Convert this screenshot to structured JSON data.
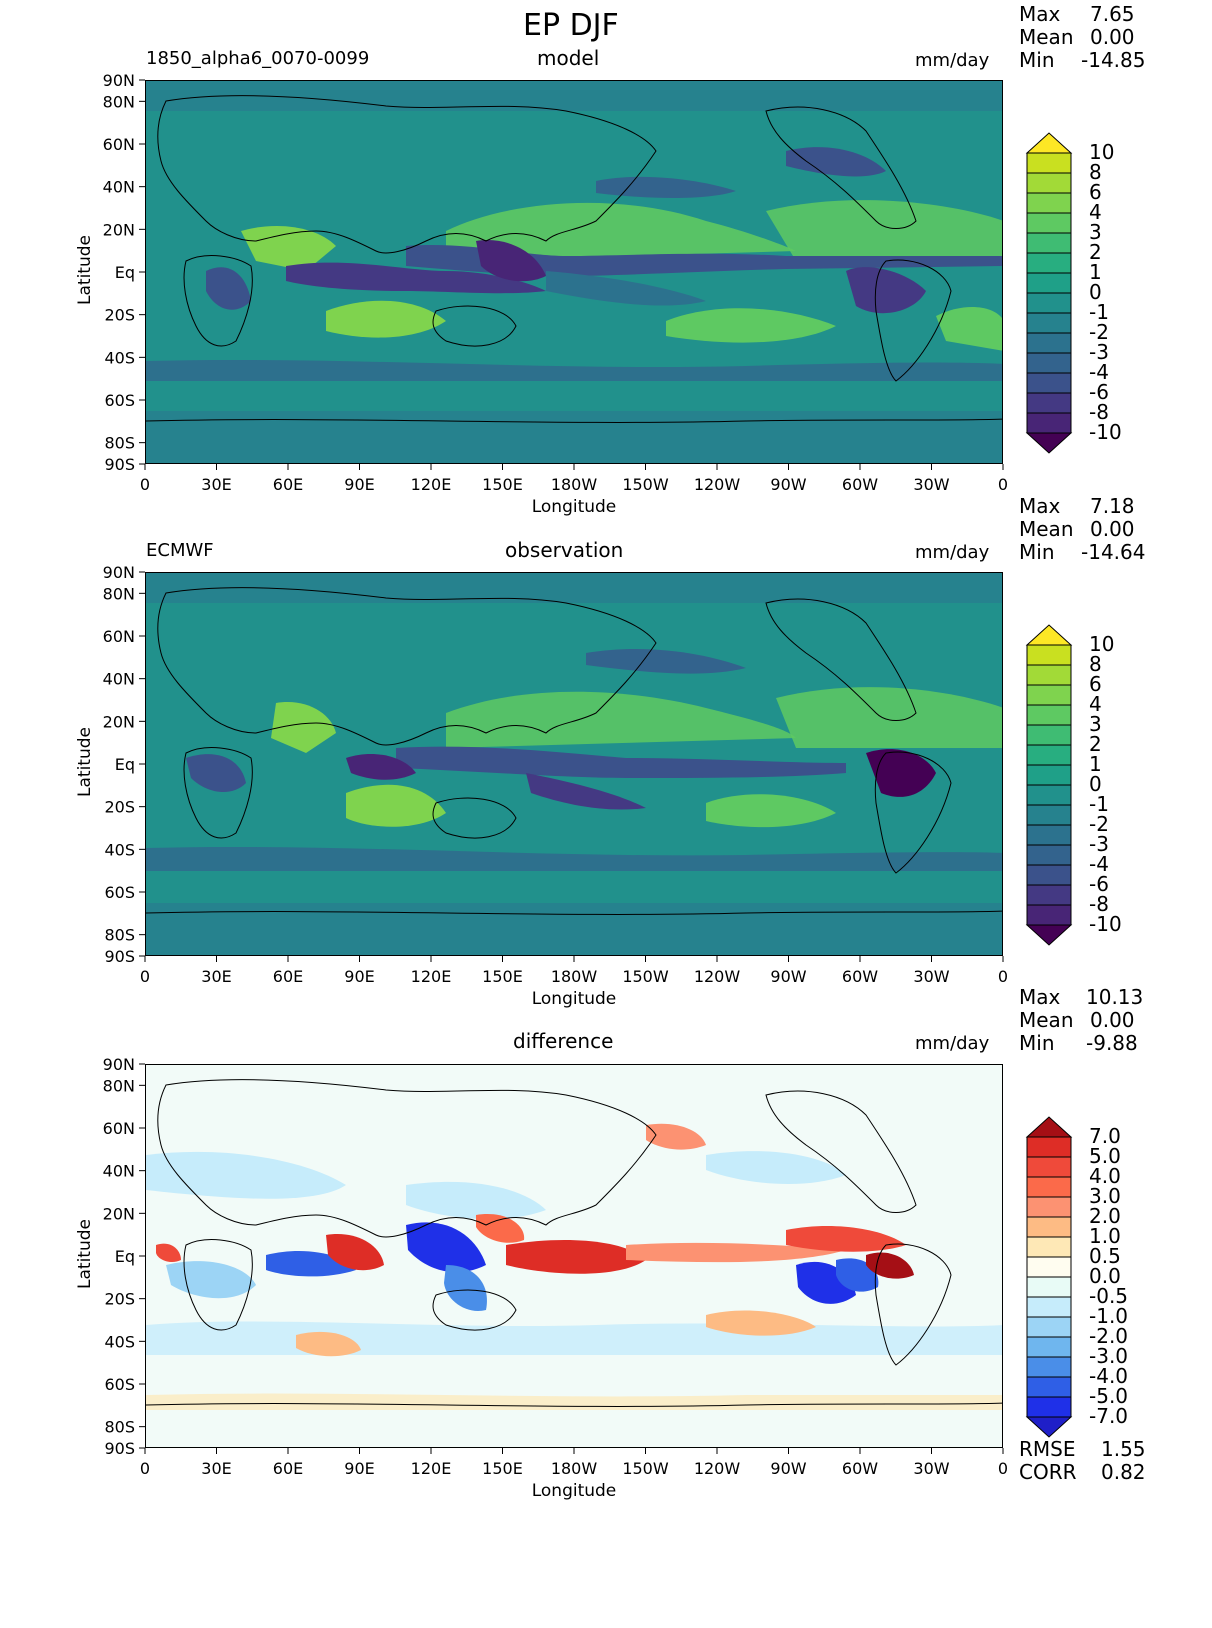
{
  "title": "EP DJF",
  "panels": [
    {
      "left_label": "1850_alpha6_0070-0099",
      "center_label": "model",
      "units": "mm/day",
      "stats": [
        {
          "label": "Max",
          "value": "7.65"
        },
        {
          "label": "Mean",
          "value": "0.00"
        },
        {
          "label": "Min",
          "value": "-14.85"
        }
      ],
      "colorbar_levels": [
        "10",
        "8",
        "6",
        "4",
        "3",
        "2",
        "1",
        "0",
        "-1",
        "-2",
        "-3",
        "-4",
        "-6",
        "-8",
        "-10"
      ],
      "colorbar_colors": [
        "#fde725",
        "#c9e020",
        "#a2da37",
        "#7fd34e",
        "#5ec962",
        "#3fbc73",
        "#28ae80",
        "#1fa088",
        "#21918c",
        "#26828e",
        "#2c728e",
        "#33638d",
        "#3b528b",
        "#443983",
        "#482576",
        "#440154"
      ]
    },
    {
      "left_label": "ECMWF",
      "center_label": "observation",
      "units": "mm/day",
      "stats": [
        {
          "label": "Max",
          "value": "7.18"
        },
        {
          "label": "Mean",
          "value": "0.00"
        },
        {
          "label": "Min",
          "value": "-14.64"
        }
      ],
      "colorbar_levels": [
        "10",
        "8",
        "6",
        "4",
        "3",
        "2",
        "1",
        "0",
        "-1",
        "-2",
        "-3",
        "-4",
        "-6",
        "-8",
        "-10"
      ],
      "colorbar_colors": [
        "#fde725",
        "#c9e020",
        "#a2da37",
        "#7fd34e",
        "#5ec962",
        "#3fbc73",
        "#28ae80",
        "#1fa088",
        "#21918c",
        "#26828e",
        "#2c728e",
        "#33638d",
        "#3b528b",
        "#443983",
        "#482576",
        "#440154"
      ]
    },
    {
      "left_label": "",
      "center_label": "difference",
      "units": "mm/day",
      "stats": [
        {
          "label": "Max",
          "value": "10.13"
        },
        {
          "label": "Mean",
          "value": "0.00"
        },
        {
          "label": "Min",
          "value": "-9.88"
        }
      ],
      "colorbar_levels": [
        "7.0",
        "5.0",
        "4.0",
        "3.0",
        "2.0",
        "1.0",
        "0.5",
        "0.0",
        "-0.5",
        "-1.0",
        "-2.0",
        "-3.0",
        "-4.0",
        "-5.0",
        "-7.0"
      ],
      "colorbar_colors": [
        "#a50f15",
        "#de2d26",
        "#ef4a3a",
        "#fb6a4a",
        "#fc9272",
        "#fdbb84",
        "#fee8b6",
        "#fffdf0",
        "#e8fbf6",
        "#c6ecfb",
        "#9cd4f5",
        "#6fb6ee",
        "#4a8ee8",
        "#2f5fe6",
        "#1f30e8",
        "#1f1fc8"
      ],
      "footer_stats": [
        {
          "label": "RMSE",
          "value": "1.55"
        },
        {
          "label": "CORR",
          "value": "0.82"
        }
      ]
    }
  ],
  "axes": {
    "xlabel": "Longitude",
    "ylabel": "Latitude",
    "x_ticks": [
      "0",
      "30E",
      "60E",
      "90E",
      "120E",
      "150E",
      "180W",
      "150W",
      "120W",
      "90W",
      "60W",
      "30W",
      "0"
    ],
    "y_ticks": [
      "90N",
      "80N",
      "60N",
      "40N",
      "20N",
      "Eq",
      "20S",
      "40S",
      "60S",
      "80S",
      "90S"
    ]
  },
  "chart_data": [
    {
      "type": "heatmap",
      "title": "model",
      "xlabel": "Longitude",
      "ylabel": "Latitude",
      "xlim": [
        0,
        360
      ],
      "ylim": [
        -90,
        90
      ],
      "units": "mm/day",
      "levels": [
        -10,
        -8,
        -6,
        -4,
        -3,
        -2,
        -1,
        0,
        1,
        2,
        3,
        4,
        6,
        8,
        10
      ],
      "stats": {
        "max": 7.65,
        "mean": 0.0,
        "min": -14.85
      }
    },
    {
      "type": "heatmap",
      "title": "observation",
      "xlabel": "Longitude",
      "ylabel": "Latitude",
      "xlim": [
        0,
        360
      ],
      "ylim": [
        -90,
        90
      ],
      "units": "mm/day",
      "levels": [
        -10,
        -8,
        -6,
        -4,
        -3,
        -2,
        -1,
        0,
        1,
        2,
        3,
        4,
        6,
        8,
        10
      ],
      "stats": {
        "max": 7.18,
        "mean": 0.0,
        "min": -14.64
      }
    },
    {
      "type": "heatmap",
      "title": "difference",
      "xlabel": "Longitude",
      "ylabel": "Latitude",
      "xlim": [
        0,
        360
      ],
      "ylim": [
        -90,
        90
      ],
      "units": "mm/day",
      "levels": [
        -7.0,
        -5.0,
        -4.0,
        -3.0,
        -2.0,
        -1.0,
        -0.5,
        0.0,
        0.5,
        1.0,
        2.0,
        3.0,
        4.0,
        5.0,
        7.0
      ],
      "stats": {
        "max": 10.13,
        "mean": 0.0,
        "min": -9.88,
        "rmse": 1.55,
        "corr": 0.82
      }
    }
  ]
}
